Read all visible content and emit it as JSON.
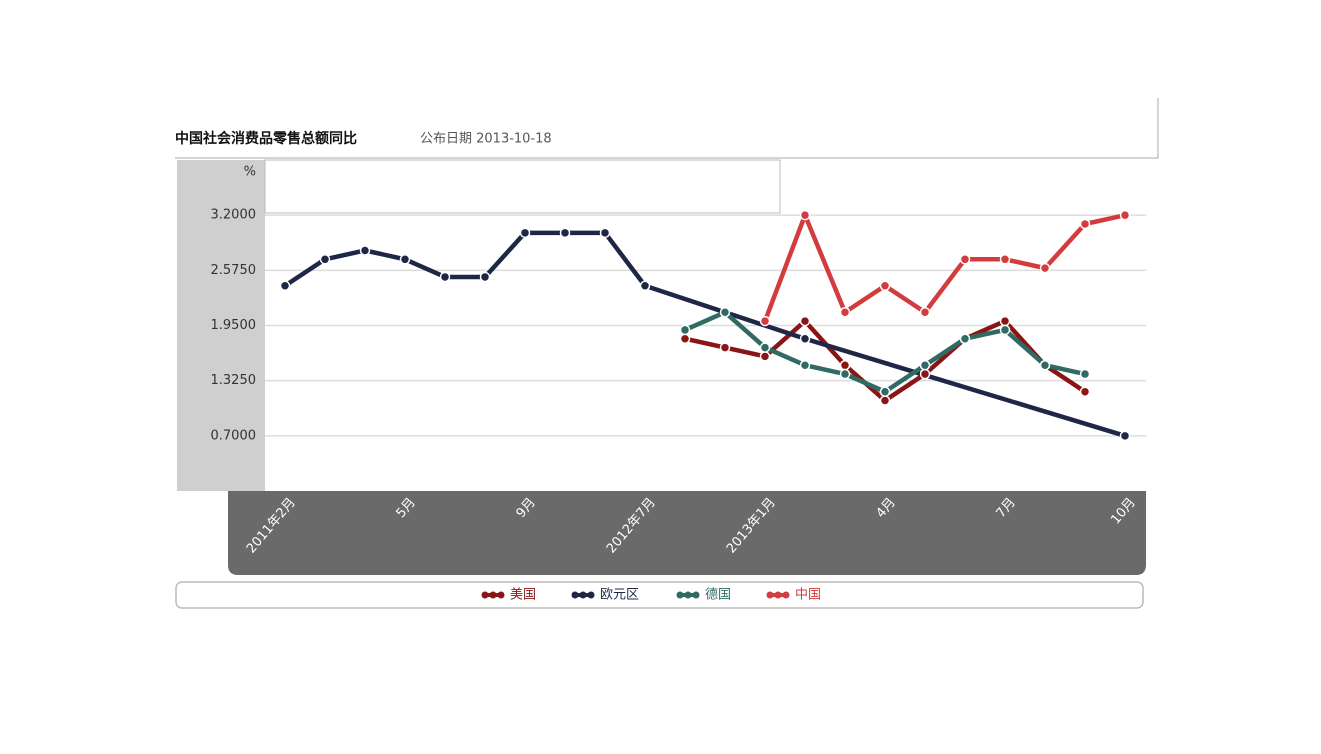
{
  "chart_data": {
    "type": "line",
    "title": "中国社会消费品零售总额同比",
    "subtitle": "公布日期 2013-10-18",
    "y_unit": "%",
    "categories": [
      "2011年2月",
      null,
      null,
      "5月",
      null,
      null,
      "9月",
      null,
      null,
      "2012年7月",
      null,
      null,
      "2013年1月",
      null,
      null,
      "4月",
      null,
      null,
      "7月",
      null,
      null,
      "10月"
    ],
    "ylim": [
      0.075,
      3.825
    ],
    "yticks": [
      {
        "value": 0.7,
        "label": "0.7000"
      },
      {
        "value": 1.325,
        "label": "1.3250"
      },
      {
        "value": 1.95,
        "label": "1.9500"
      },
      {
        "value": 2.575,
        "label": "2.5750"
      },
      {
        "value": 3.2,
        "label": "3.2000"
      }
    ],
    "grid": true,
    "legend": "bottom",
    "connect_gaps": true,
    "series": [
      {
        "name": "美国",
        "color": "#8b1515",
        "values": [
          null,
          null,
          null,
          null,
          null,
          null,
          null,
          null,
          null,
          null,
          1.8,
          1.7,
          1.6,
          2.0,
          1.5,
          1.1,
          1.4,
          1.8,
          2.0,
          1.5,
          1.2,
          null
        ]
      },
      {
        "name": "欧元区",
        "color": "#1e2846",
        "values": [
          2.4,
          2.7,
          2.8,
          2.7,
          2.5,
          2.5,
          3.0,
          3.0,
          3.0,
          2.4,
          null,
          null,
          null,
          1.8,
          null,
          null,
          null,
          null,
          null,
          null,
          null,
          0.7
        ]
      },
      {
        "name": "德国",
        "color": "#2f6b64",
        "values": [
          null,
          null,
          null,
          null,
          null,
          null,
          null,
          null,
          null,
          null,
          1.9,
          2.1,
          1.7,
          1.5,
          1.4,
          1.2,
          1.5,
          1.8,
          1.9,
          1.5,
          1.4,
          null
        ]
      },
      {
        "name": "中国",
        "color": "#d23c3f",
        "values": [
          null,
          null,
          null,
          null,
          null,
          null,
          null,
          null,
          null,
          null,
          null,
          null,
          2.0,
          3.2,
          2.1,
          2.4,
          2.1,
          2.7,
          2.7,
          2.6,
          3.1,
          3.2
        ]
      }
    ]
  }
}
